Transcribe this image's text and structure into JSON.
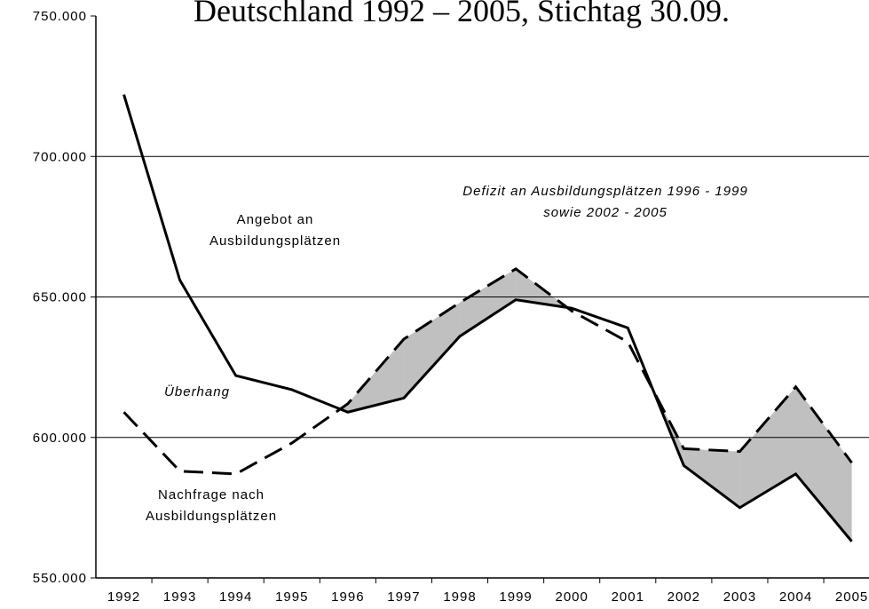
{
  "chart_data": {
    "type": "line",
    "title": "Deutschland 1992 – 2005, Stichtag 30.09.",
    "categories": [
      "1992",
      "1993",
      "1994",
      "1995",
      "1996",
      "1997",
      "1998",
      "1999",
      "2000",
      "2001",
      "2002",
      "2003",
      "2004",
      "2005"
    ],
    "series": [
      {
        "color": "#000000",
        "dash": "solid",
        "values": [
          722000,
          656000,
          622000,
          617000,
          609000,
          614000,
          636000,
          649000,
          646000,
          639000,
          590000,
          575000,
          587000,
          563000
        ]
      },
      {
        "color": "#000000",
        "dash": "dashed",
        "values": [
          609000,
          588000,
          587000,
          598000,
          612000,
          635000,
          648000,
          660000,
          645000,
          634000,
          596000,
          595000,
          618000,
          591000
        ]
      }
    ],
    "fill_between": {
      "color": "#c0c0c0"
    },
    "ylim": [
      550000,
      750000
    ],
    "yticks": [
      {
        "value": 550000,
        "label": "550.000"
      },
      {
        "value": 600000,
        "label": "600.000"
      },
      {
        "value": 650000,
        "label": "650.000"
      },
      {
        "value": 700000,
        "label": "700.000"
      },
      {
        "value": 750000,
        "label": "750.000"
      }
    ],
    "grid": true,
    "annotations": [
      {
        "lines": [
          "Angebot an",
          "Ausbildungsplätzen"
        ],
        "italic": false
      },
      {
        "lines": [
          "Defizit an Ausbildungsplätzen 1996  - 1999",
          "sowie 2002 - 2005"
        ],
        "italic": true
      },
      {
        "lines": [
          "Überhang"
        ],
        "italic": true
      },
      {
        "lines": [
          "Nachfrage nach",
          "Ausbildungsplätzen"
        ],
        "italic": false
      }
    ]
  }
}
